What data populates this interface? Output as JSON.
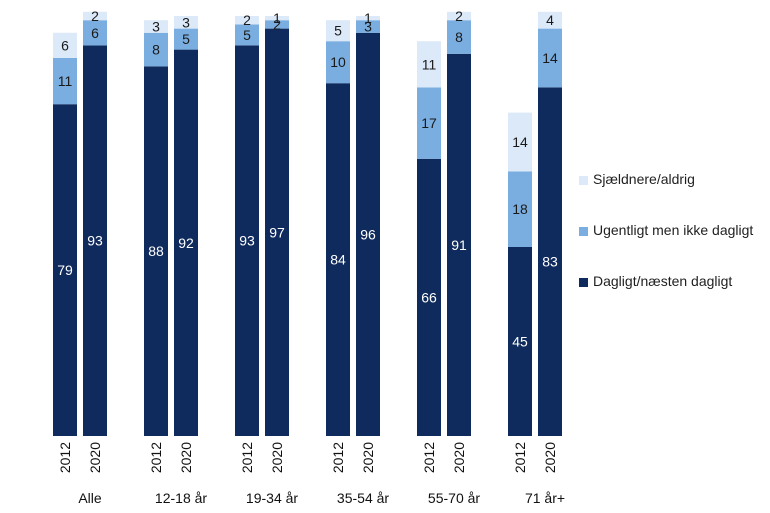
{
  "chart_data": {
    "type": "bar",
    "stacked": true,
    "orientation": "vertical",
    "ylim": [
      0,
      100
    ],
    "groups": [
      {
        "label": "Alle",
        "years": [
          "2012",
          "2020"
        ]
      },
      {
        "label": "12-18 år",
        "years": [
          "2012",
          "2020"
        ]
      },
      {
        "label": "19-34 år",
        "years": [
          "2012",
          "2020"
        ]
      },
      {
        "label": "35-54 år",
        "years": [
          "2012",
          "2020"
        ]
      },
      {
        "label": "55-70 år",
        "years": [
          "2012",
          "2020"
        ]
      },
      {
        "label": "71 år+",
        "years": [
          "2012",
          "2020"
        ]
      }
    ],
    "series": [
      {
        "name": "Dagligt/næsten dagligt",
        "color": "#0f2a5c",
        "label_color": "#ffffff",
        "values": [
          [
            79,
            93
          ],
          [
            88,
            92
          ],
          [
            93,
            97
          ],
          [
            84,
            96
          ],
          [
            66,
            91
          ],
          [
            45,
            83
          ]
        ]
      },
      {
        "name": "Ugentligt men ikke dagligt",
        "color": "#7aaee0",
        "label_color": "#1a1a1a",
        "values": [
          [
            11,
            6
          ],
          [
            8,
            5
          ],
          [
            5,
            2
          ],
          [
            10,
            3
          ],
          [
            17,
            8
          ],
          [
            18,
            14
          ]
        ]
      },
      {
        "name": "Sjældnere/aldrig",
        "color": "#dce9f8",
        "label_color": "#1a1a1a",
        "values": [
          [
            6,
            2
          ],
          [
            3,
            3
          ],
          [
            2,
            1
          ],
          [
            5,
            1
          ],
          [
            11,
            2
          ],
          [
            14,
            4
          ]
        ]
      }
    ],
    "legend_order": [
      "Sjældnere/aldrig",
      "Ugentligt men ikke dagligt",
      "Dagligt/næsten dagligt"
    ],
    "legend_position": "right",
    "grid": false
  }
}
